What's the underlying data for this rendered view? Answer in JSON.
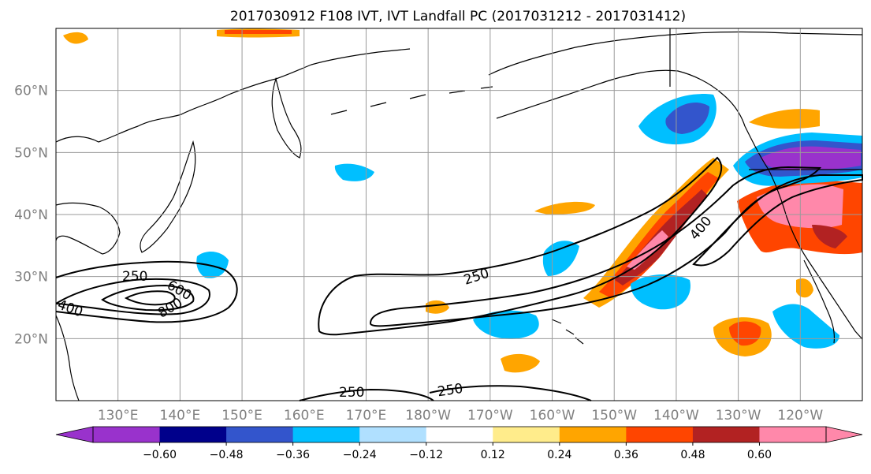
{
  "title": "2017030912 F108 IVT, IVT Landfall PC (2017031212 - 2017031412)",
  "map": {
    "lon_range_east": [
      120,
      250
    ],
    "lat_range": [
      10,
      70
    ],
    "lat_labels": [
      "20°N",
      "30°N",
      "40°N",
      "50°N",
      "60°N"
    ],
    "lat_values": [
      20,
      30,
      40,
      50,
      60
    ],
    "lon_labels": [
      "130°E",
      "140°E",
      "150°E",
      "160°E",
      "170°E",
      "180°W",
      "170°W",
      "160°W",
      "150°W",
      "140°W",
      "130°W",
      "120°W"
    ],
    "lon_values_east": [
      130,
      140,
      150,
      160,
      170,
      180,
      190,
      200,
      210,
      220,
      230,
      240
    ],
    "gridlines": true
  },
  "ivt_contours": {
    "labels": [
      "250",
      "600",
      "800",
      "400",
      "250",
      "400",
      "250",
      "250"
    ]
  },
  "colorbar": {
    "tick_labels": [
      "−0.60",
      "−0.48",
      "−0.36",
      "−0.24",
      "−0.12",
      "0.12",
      "0.24",
      "0.36",
      "0.48",
      "0.60"
    ],
    "tick_values": [
      -0.6,
      -0.48,
      -0.36,
      -0.24,
      -0.12,
      0.12,
      0.24,
      0.36,
      0.48,
      0.6
    ],
    "colors": [
      "#9932cc",
      "#00008b",
      "#3355cc",
      "#00bfff",
      "#b0e0ff",
      "#ffffff",
      "#ffec8b",
      "#ffa500",
      "#ff4500",
      "#b22222",
      "#ff88aa"
    ],
    "extend": "both"
  }
}
